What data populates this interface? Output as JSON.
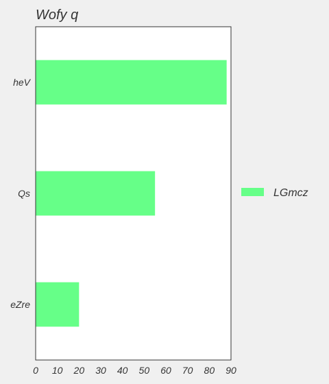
{
  "chart_data": {
    "type": "bar",
    "orientation": "horizontal",
    "title": "Wofy q",
    "xlabel": "",
    "ylabel": "",
    "categories": [
      "heV",
      "Qs",
      "eZre"
    ],
    "series": [
      {
        "name": "LGmcz",
        "values": [
          88,
          55,
          20
        ],
        "color": "#66ff88"
      }
    ],
    "xlim": [
      0,
      90
    ],
    "xticks": [
      0,
      10,
      20,
      30,
      40,
      50,
      60,
      70,
      80,
      90
    ],
    "grid": false,
    "legend": "right",
    "colors": {
      "background": "#f0f0f0",
      "plot_background": "#ffffff",
      "axis": "#333333"
    }
  }
}
